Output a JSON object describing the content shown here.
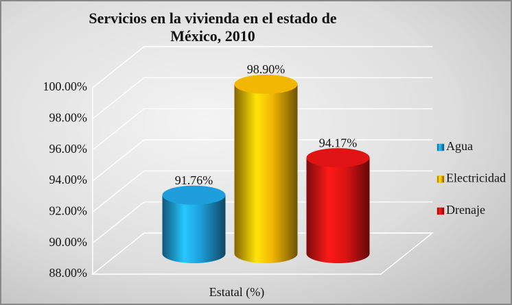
{
  "chart_data": {
    "type": "bar3d",
    "title": "Servicios en la vivienda en el estado de México, 2010",
    "categories": [
      "Estatal (%)"
    ],
    "series": [
      {
        "name": "Agua",
        "color": "#1e9fdc",
        "values": [
          91.76
        ],
        "value_labels": [
          "91.76%"
        ]
      },
      {
        "name": "Electricidad",
        "color": "#f2b705",
        "values": [
          98.9
        ],
        "value_labels": [
          "98.90%"
        ]
      },
      {
        "name": "Drenaje",
        "color": "#e01414",
        "values": [
          94.17
        ],
        "value_labels": [
          "94.17%"
        ]
      }
    ],
    "ylim": [
      88,
      100
    ],
    "yticks": [
      {
        "value": 88,
        "label": "88.00%"
      },
      {
        "value": 90,
        "label": "90.00%"
      },
      {
        "value": 92,
        "label": "92.00%"
      },
      {
        "value": 94,
        "label": "94.00%"
      },
      {
        "value": 96,
        "label": "96.00%"
      },
      {
        "value": 98,
        "label": "98.00%"
      },
      {
        "value": 100,
        "label": "100.00%"
      }
    ],
    "grid": true,
    "legend": "right"
  }
}
